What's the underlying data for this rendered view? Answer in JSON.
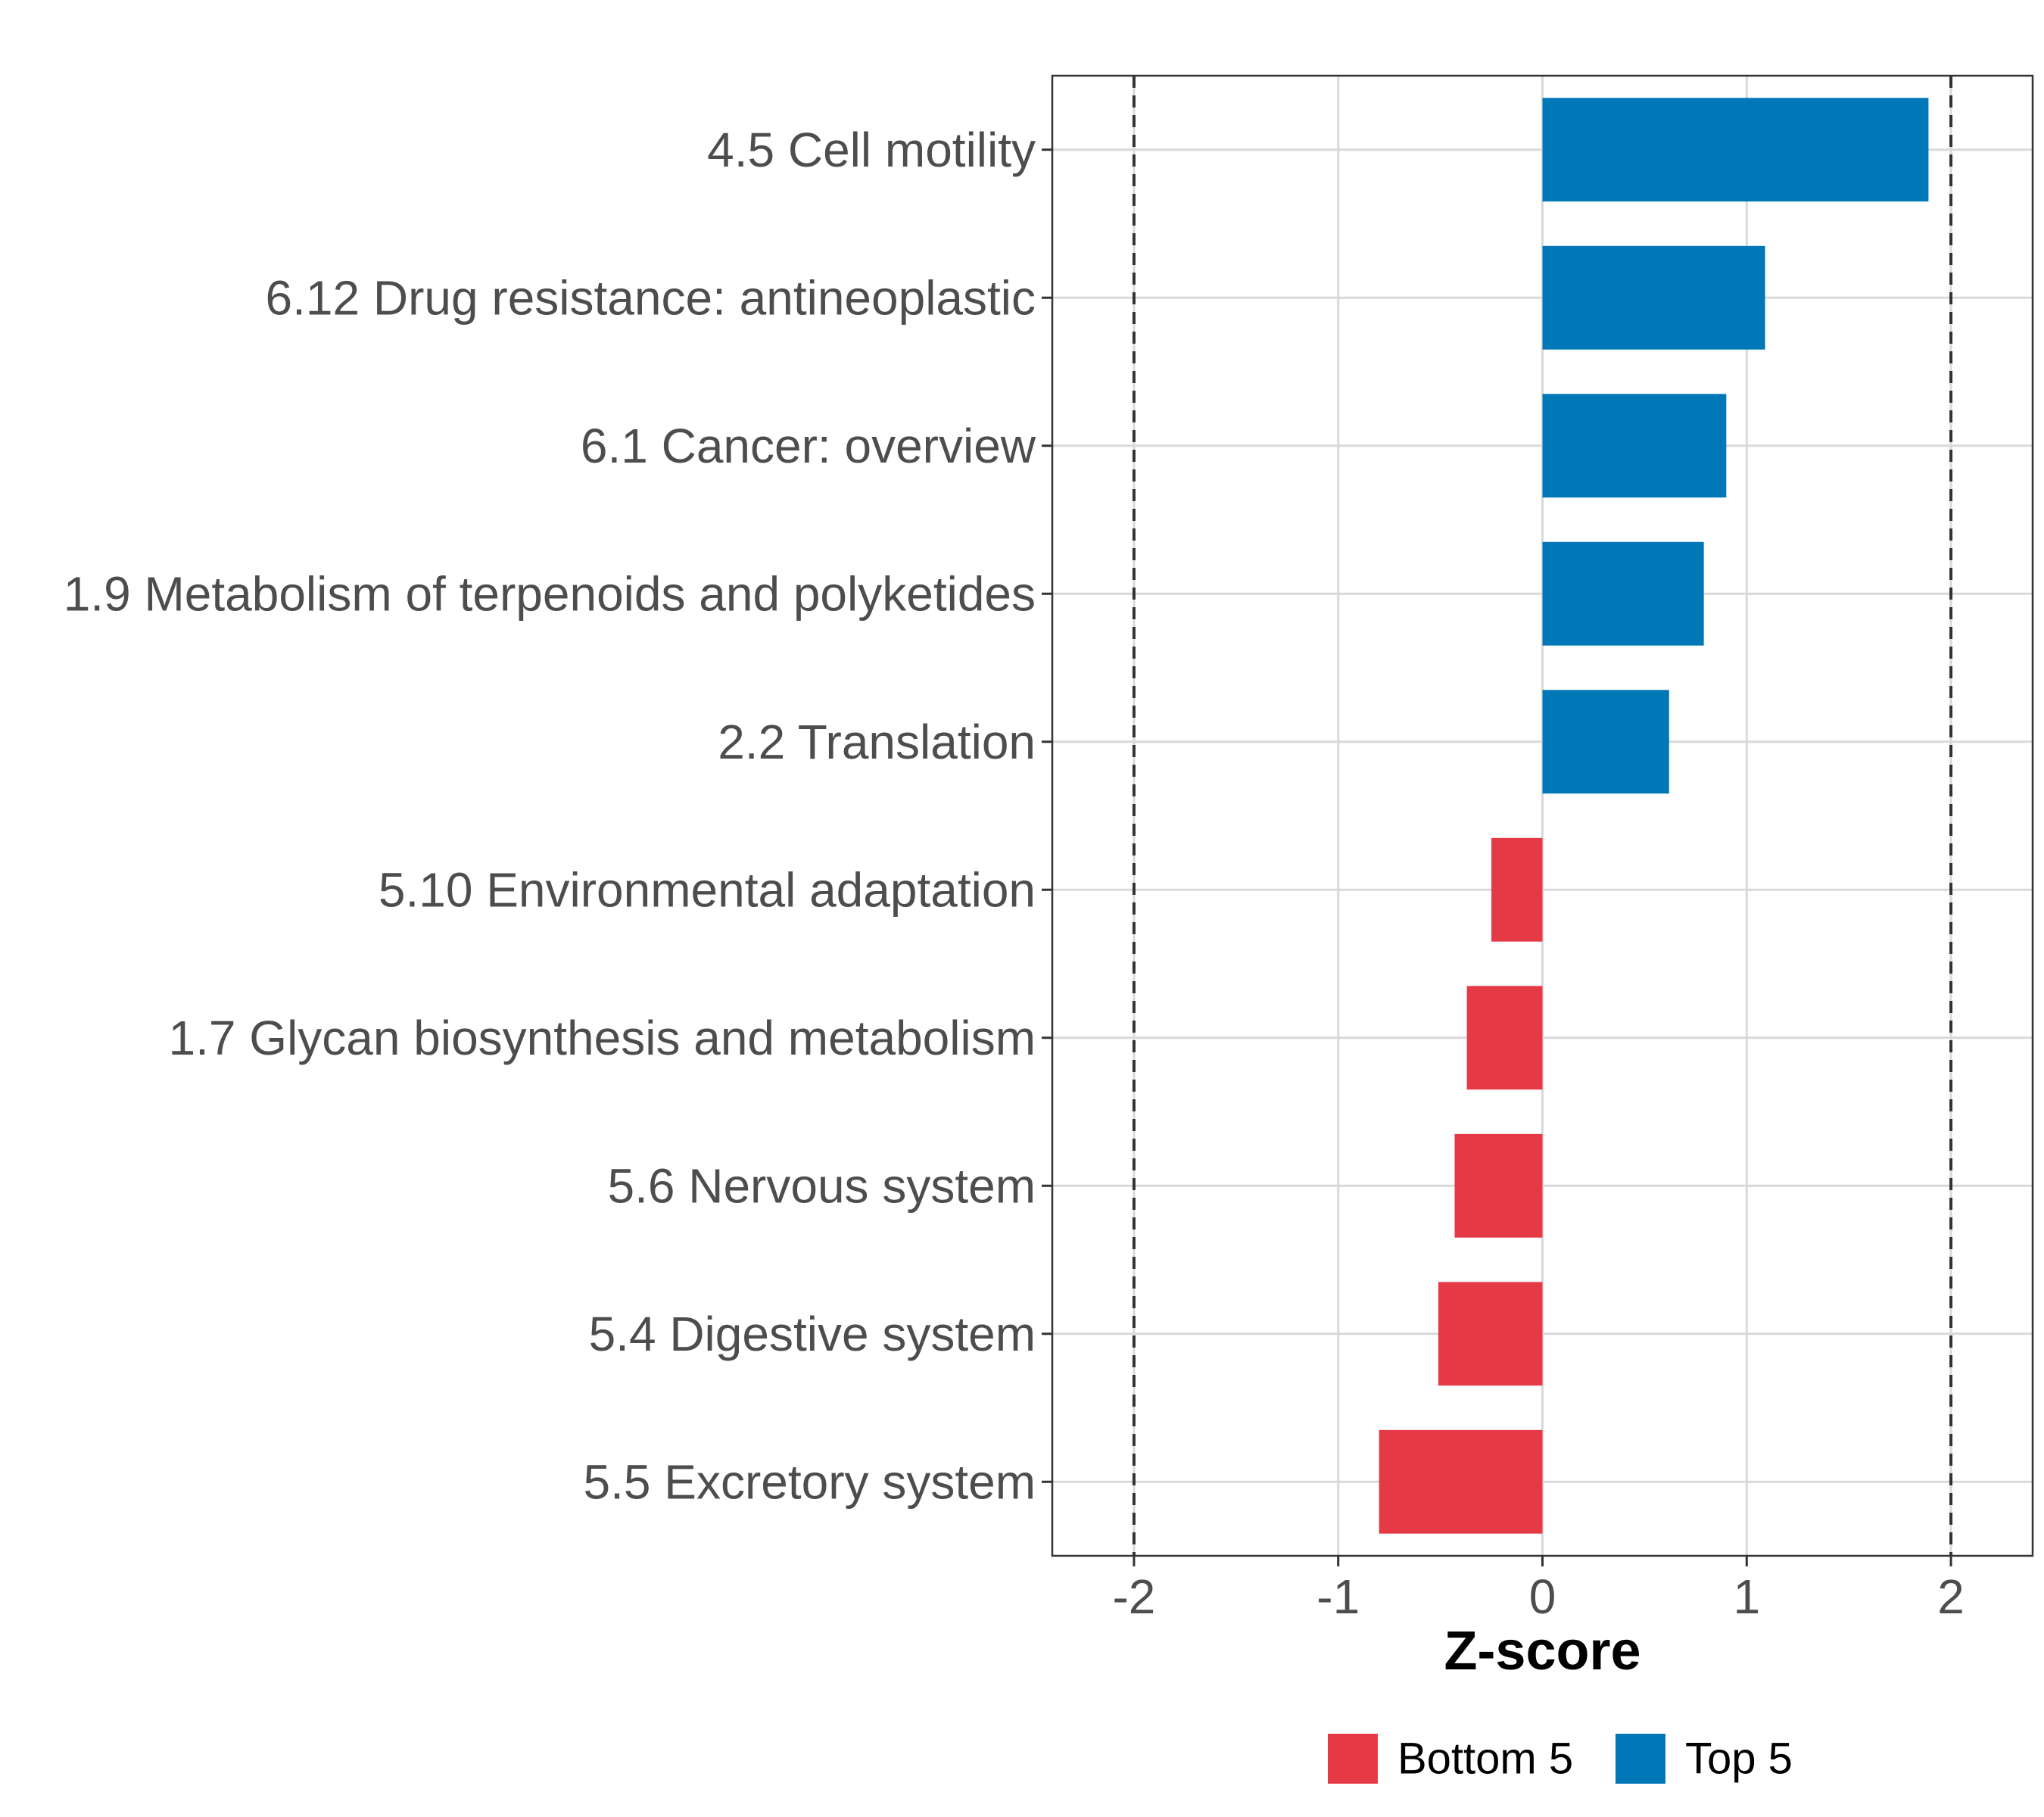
{
  "chart_data": {
    "type": "bar",
    "orientation": "horizontal",
    "title": "",
    "xlabel": "Z-score",
    "ylabel": "",
    "xlim": [
      -2.4,
      2.4
    ],
    "xticks": [
      -2,
      -1,
      0,
      1,
      2
    ],
    "xtick_labels": [
      "-2",
      "-1",
      "0",
      "1",
      "2"
    ],
    "reference_lines": [
      -2,
      2
    ],
    "grid": true,
    "categories": [
      "4.5 Cell motility",
      "6.12 Drug resistance: antineoplastic",
      "6.1 Cancer: overview",
      "1.9 Metabolism of terpenoids and polyketides",
      "2.2 Translation",
      "5.10 Environmental adaptation",
      "1.7 Glycan biosynthesis and metabolism",
      "5.6 Nervous system",
      "5.4 Digestive system",
      "5.5 Excretory system"
    ],
    "values": [
      1.89,
      1.09,
      0.9,
      0.79,
      0.62,
      -0.25,
      -0.37,
      -0.43,
      -0.51,
      -0.8
    ],
    "groups": [
      "Top 5",
      "Top 5",
      "Top 5",
      "Top 5",
      "Top 5",
      "Bottom 5",
      "Bottom 5",
      "Bottom 5",
      "Bottom 5",
      "Bottom 5"
    ],
    "legend": {
      "position": "bottom",
      "entries": [
        {
          "label": "Bottom 5",
          "color": "#e63946"
        },
        {
          "label": "Top 5",
          "color": "#0077b6"
        }
      ]
    },
    "colors": {
      "Top 5": "#0077b6",
      "Bottom 5": "#e63946"
    }
  }
}
